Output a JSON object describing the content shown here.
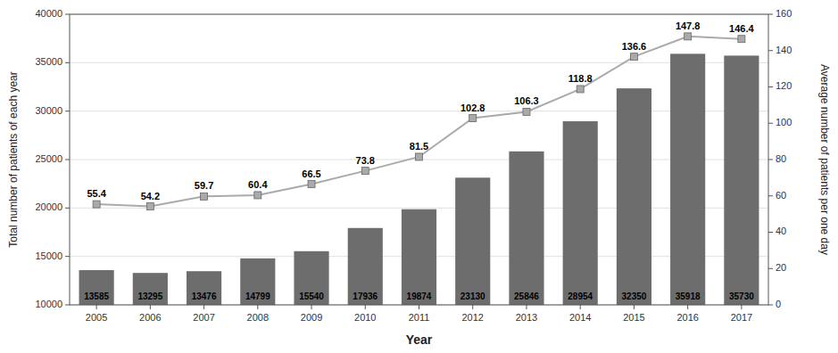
{
  "chart_data": {
    "type": "bar",
    "xlabel": "Year",
    "ylabel": "Total number of patients of each year",
    "y2label": "Average number of patients per one day",
    "categories": [
      "2005",
      "2006",
      "2007",
      "2008",
      "2009",
      "2010",
      "2011",
      "2012",
      "2013",
      "2014",
      "2015",
      "2016",
      "2017"
    ],
    "ylim": [
      10000,
      40000
    ],
    "yticks": [
      10000,
      15000,
      20000,
      25000,
      30000,
      35000,
      40000
    ],
    "y2lim": [
      0,
      160
    ],
    "y2ticks": [
      0,
      20,
      40,
      60,
      80,
      100,
      120,
      140,
      160
    ],
    "grid": true,
    "series": [
      {
        "type": "bar",
        "color": "#6d6d6d",
        "data_labels": true,
        "values": [
          13585,
          13295,
          13476,
          14799,
          15540,
          17936,
          19874,
          23130,
          25846,
          28954,
          32350,
          35918,
          35730
        ]
      },
      {
        "type": "line",
        "axis": "y2",
        "color": "#aaaaaa",
        "marker": "square",
        "data_labels": true,
        "values": [
          55.4,
          54.2,
          59.7,
          60.4,
          66.5,
          73.8,
          81.5,
          102.8,
          106.3,
          118.8,
          136.6,
          147.8,
          146.4
        ]
      }
    ]
  }
}
